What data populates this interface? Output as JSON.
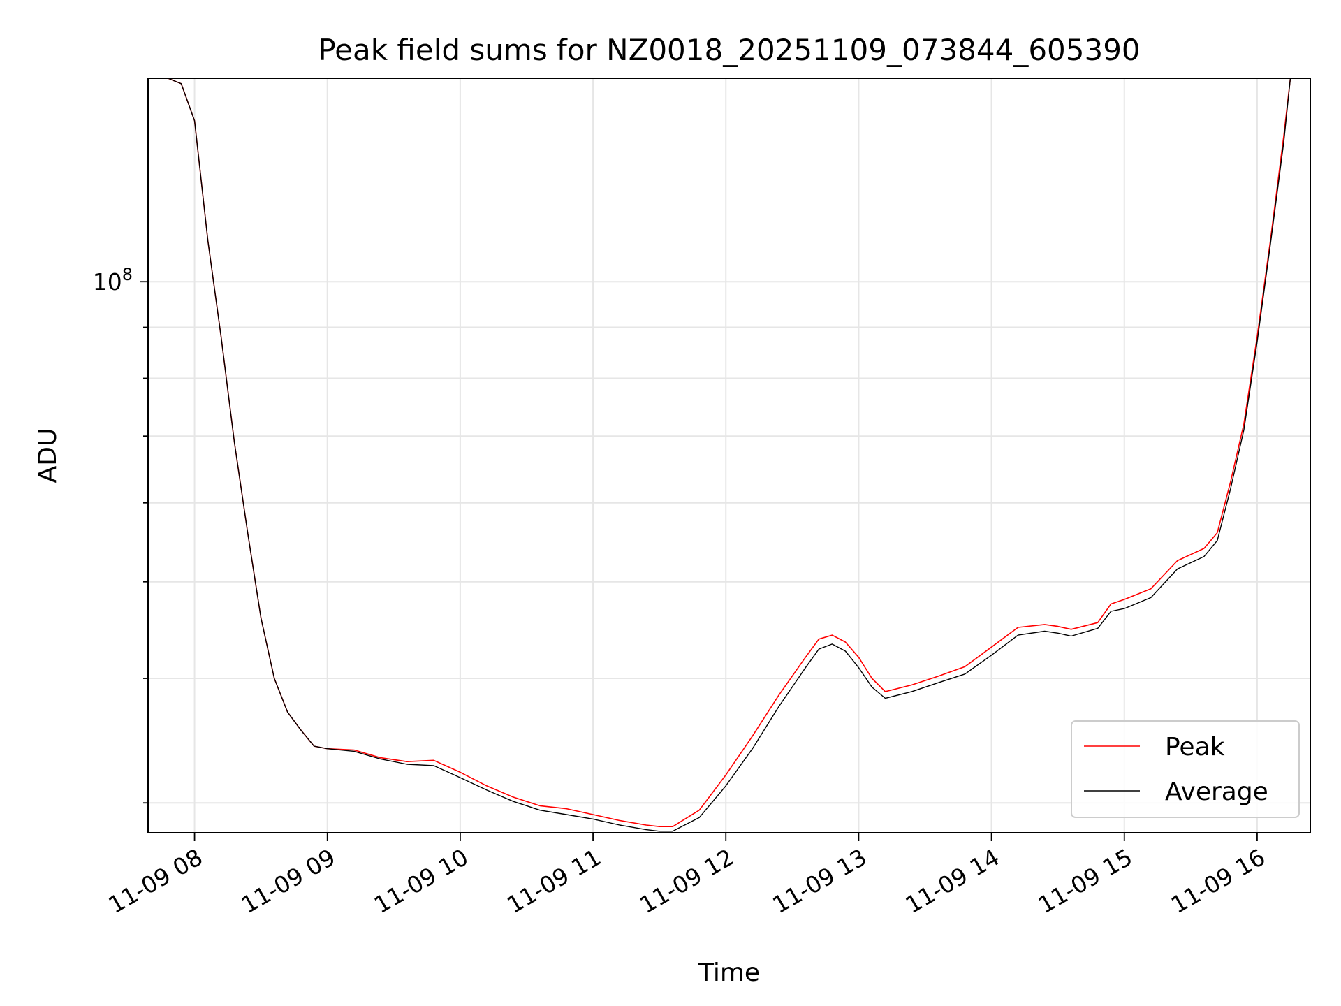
{
  "chart_data": {
    "type": "line",
    "title": "Peak field sums for NZ0018_20251109_073844_605390",
    "xlabel": "Time",
    "ylabel": "ADU",
    "x_unit": "hours since 11-09 00:00",
    "xlim": [
      7.65,
      16.4
    ],
    "ylim": [
      28000000,
      160000000
    ],
    "yscale": "log",
    "grid": true,
    "legend_position": "lower right",
    "x_ticks": [
      {
        "value": 8,
        "label": "11-09 08"
      },
      {
        "value": 9,
        "label": "11-09 09"
      },
      {
        "value": 10,
        "label": "11-09 10"
      },
      {
        "value": 11,
        "label": "11-09 11"
      },
      {
        "value": 12,
        "label": "11-09 12"
      },
      {
        "value": 13,
        "label": "11-09 13"
      },
      {
        "value": 14,
        "label": "11-09 14"
      },
      {
        "value": 15,
        "label": "11-09 15"
      },
      {
        "value": 16,
        "label": "11-09 16"
      }
    ],
    "y_major_tick": {
      "value": 100000000,
      "base": "10",
      "exponent": "8"
    },
    "y_minor_ticks": [
      30000000,
      40000000,
      50000000,
      60000000,
      70000000,
      80000000,
      90000000,
      200000000
    ],
    "series": [
      {
        "name": "Peak",
        "color": "#ff0000",
        "x": [
          7.65,
          7.8,
          7.9,
          8.0,
          8.1,
          8.2,
          8.3,
          8.4,
          8.5,
          8.6,
          8.7,
          8.8,
          8.9,
          9.0,
          9.2,
          9.4,
          9.6,
          9.8,
          10.0,
          10.2,
          10.4,
          10.6,
          10.8,
          11.0,
          11.2,
          11.4,
          11.5,
          11.6,
          11.8,
          12.0,
          12.2,
          12.4,
          12.6,
          12.7,
          12.8,
          12.9,
          13.0,
          13.1,
          13.2,
          13.4,
          13.6,
          13.8,
          14.0,
          14.2,
          14.4,
          14.5,
          14.6,
          14.8,
          14.9,
          15.0,
          15.2,
          15.4,
          15.6,
          15.7,
          15.8,
          15.9,
          16.0,
          16.1,
          16.2,
          16.25,
          16.4
        ],
        "y": [
          160000000,
          160000000,
          158000000,
          145000000,
          110000000,
          88000000,
          69000000,
          56000000,
          46000000,
          40000000,
          37000000,
          35500000,
          34200000,
          34000000,
          33900000,
          33300000,
          33000000,
          33100000,
          32200000,
          31200000,
          30400000,
          29800000,
          29600000,
          29200000,
          28800000,
          28500000,
          28400000,
          28400000,
          29500000,
          32000000,
          35000000,
          38500000,
          42000000,
          43800000,
          44200000,
          43500000,
          42000000,
          40000000,
          38800000,
          39400000,
          40200000,
          41100000,
          43000000,
          45000000,
          45300000,
          45100000,
          44800000,
          45500000,
          47500000,
          48000000,
          49200000,
          52500000,
          54000000,
          56000000,
          63000000,
          72000000,
          88000000,
          110000000,
          140000000,
          160000000,
          160000000
        ]
      },
      {
        "name": "Average",
        "color": "#000000",
        "x": [
          7.65,
          7.8,
          7.9,
          8.0,
          8.1,
          8.2,
          8.3,
          8.4,
          8.5,
          8.6,
          8.7,
          8.8,
          8.9,
          9.0,
          9.2,
          9.4,
          9.6,
          9.8,
          10.0,
          10.2,
          10.4,
          10.6,
          10.8,
          11.0,
          11.2,
          11.4,
          11.5,
          11.6,
          11.8,
          12.0,
          12.2,
          12.4,
          12.6,
          12.7,
          12.8,
          12.9,
          13.0,
          13.1,
          13.2,
          13.4,
          13.6,
          13.8,
          14.0,
          14.2,
          14.4,
          14.5,
          14.6,
          14.8,
          14.9,
          15.0,
          15.2,
          15.4,
          15.6,
          15.7,
          15.8,
          15.9,
          16.0,
          16.1,
          16.2,
          16.25,
          16.4
        ],
        "y": [
          160000000,
          160000000,
          158000000,
          145000000,
          110000000,
          88000000,
          69000000,
          56000000,
          46000000,
          40000000,
          37000000,
          35500000,
          34200000,
          34000000,
          33800000,
          33200000,
          32800000,
          32700000,
          31800000,
          30900000,
          30100000,
          29500000,
          29200000,
          28900000,
          28500000,
          28200000,
          28100000,
          28100000,
          29000000,
          31200000,
          34000000,
          37500000,
          41000000,
          42800000,
          43300000,
          42600000,
          41000000,
          39200000,
          38200000,
          38800000,
          39600000,
          40400000,
          42200000,
          44200000,
          44600000,
          44400000,
          44100000,
          44900000,
          46700000,
          47000000,
          48200000,
          51500000,
          53000000,
          55000000,
          62000000,
          71000000,
          87000000,
          109000000,
          138000000,
          160000000,
          160000000
        ]
      }
    ]
  }
}
